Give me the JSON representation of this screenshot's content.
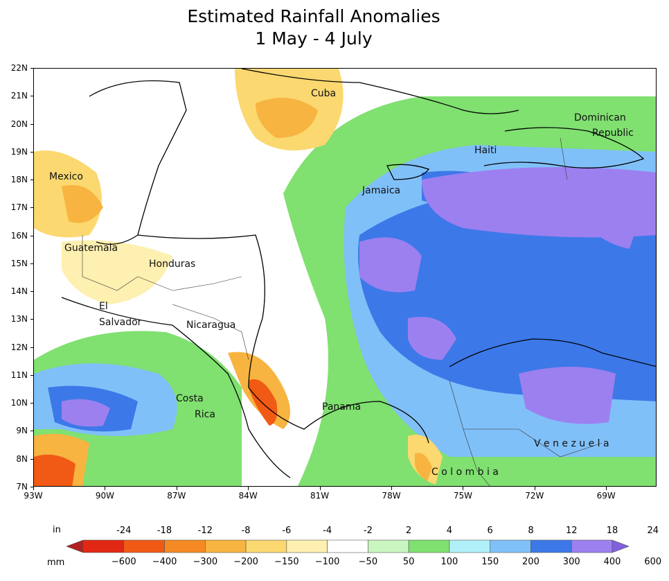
{
  "title": {
    "line1": "Estimated Rainfall Anomalies",
    "line2": "1 May - 4 July"
  },
  "axes": {
    "lat_labels": [
      "22N",
      "21N",
      "20N",
      "19N",
      "18N",
      "17N",
      "16N",
      "15N",
      "14N",
      "13N",
      "12N",
      "11N",
      "10N",
      "9N",
      "8N",
      "7N"
    ],
    "lon_labels": [
      "93W",
      "90W",
      "87W",
      "84W",
      "81W",
      "78W",
      "75W",
      "72W",
      "69W"
    ]
  },
  "places": {
    "cuba": "Cuba",
    "dominican1": "Dominican",
    "dominican2": "Republic",
    "haiti": "Haiti",
    "mexico": "Mexico",
    "jamaica": "Jamaica",
    "guatemala": "Guatemala",
    "honduras": "Honduras",
    "el1": "El",
    "el2": "Salvador",
    "nicaragua": "Nicaragua",
    "costa1": "Costa",
    "costa2": "Rica",
    "panama": "Panama",
    "venezuela": "V e n e z u e l a",
    "colombia": "C o l o m b i a"
  },
  "legend": {
    "unit_in": "in",
    "unit_mm": "mm",
    "in_values": [
      "-24",
      "-18",
      "-12",
      "-8",
      "-6",
      "-4",
      "-2",
      "2",
      "4",
      "6",
      "8",
      "12",
      "18",
      "24"
    ],
    "mm_values": [
      "−600",
      "−400",
      "−300",
      "−200",
      "−150",
      "−100",
      "−50",
      "50",
      "100",
      "150",
      "200",
      "300",
      "400",
      "600"
    ],
    "colors": [
      "#b02020",
      "#e02814",
      "#f05a14",
      "#f58a24",
      "#f7b440",
      "#fbd870",
      "#fdf0b0",
      "#ffffff",
      "#c8f5c0",
      "#80e070",
      "#b0f0f8",
      "#80c0f8",
      "#3c78e8",
      "#9c80f0",
      "#8060e0"
    ]
  }
}
